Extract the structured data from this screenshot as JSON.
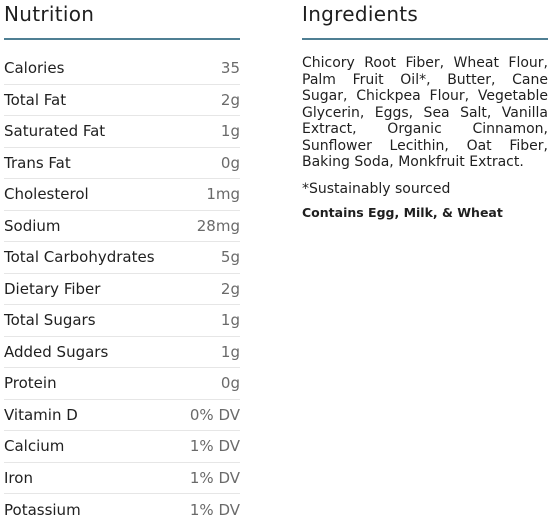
{
  "nutrition": {
    "title": "Nutrition",
    "rows": [
      {
        "label": "Calories",
        "value": "35"
      },
      {
        "label": "Total Fat",
        "value": "2g"
      },
      {
        "label": "Saturated Fat",
        "value": "1g"
      },
      {
        "label": "Trans Fat",
        "value": "0g"
      },
      {
        "label": "Cholesterol",
        "value": "1mg"
      },
      {
        "label": "Sodium",
        "value": "28mg"
      },
      {
        "label": "Total Carbohydrates",
        "value": "5g"
      },
      {
        "label": "Dietary Fiber",
        "value": "2g"
      },
      {
        "label": "Total Sugars",
        "value": "1g"
      },
      {
        "label": "Added Sugars",
        "value": "1g"
      },
      {
        "label": "Protein",
        "value": "0g"
      },
      {
        "label": "Vitamin D",
        "value": "0% DV"
      },
      {
        "label": "Calcium",
        "value": "1% DV"
      },
      {
        "label": "Iron",
        "value": "1% DV"
      },
      {
        "label": "Potassium",
        "value": "1% DV"
      }
    ]
  },
  "ingredients": {
    "title": "Ingredients",
    "text": "Chicory Root Fiber, Wheat Flour, Palm Fruit Oil*, Butter, Cane Sugar, Chickpea Flour, Vegetable Glycerin, Eggs, Sea Salt, Vanilla Extract, Organic Cinnamon, Sunflower Lecithin, Oat Fiber, Baking Soda, Monkfruit Extract.",
    "note": "*Sustainably sourced",
    "allergens": "Contains Egg, Milk, & Wheat"
  },
  "colors": {
    "divider_accent": "#4f7f93",
    "row_divider": "#e6e6e6",
    "value_text": "#6a6a6a"
  }
}
